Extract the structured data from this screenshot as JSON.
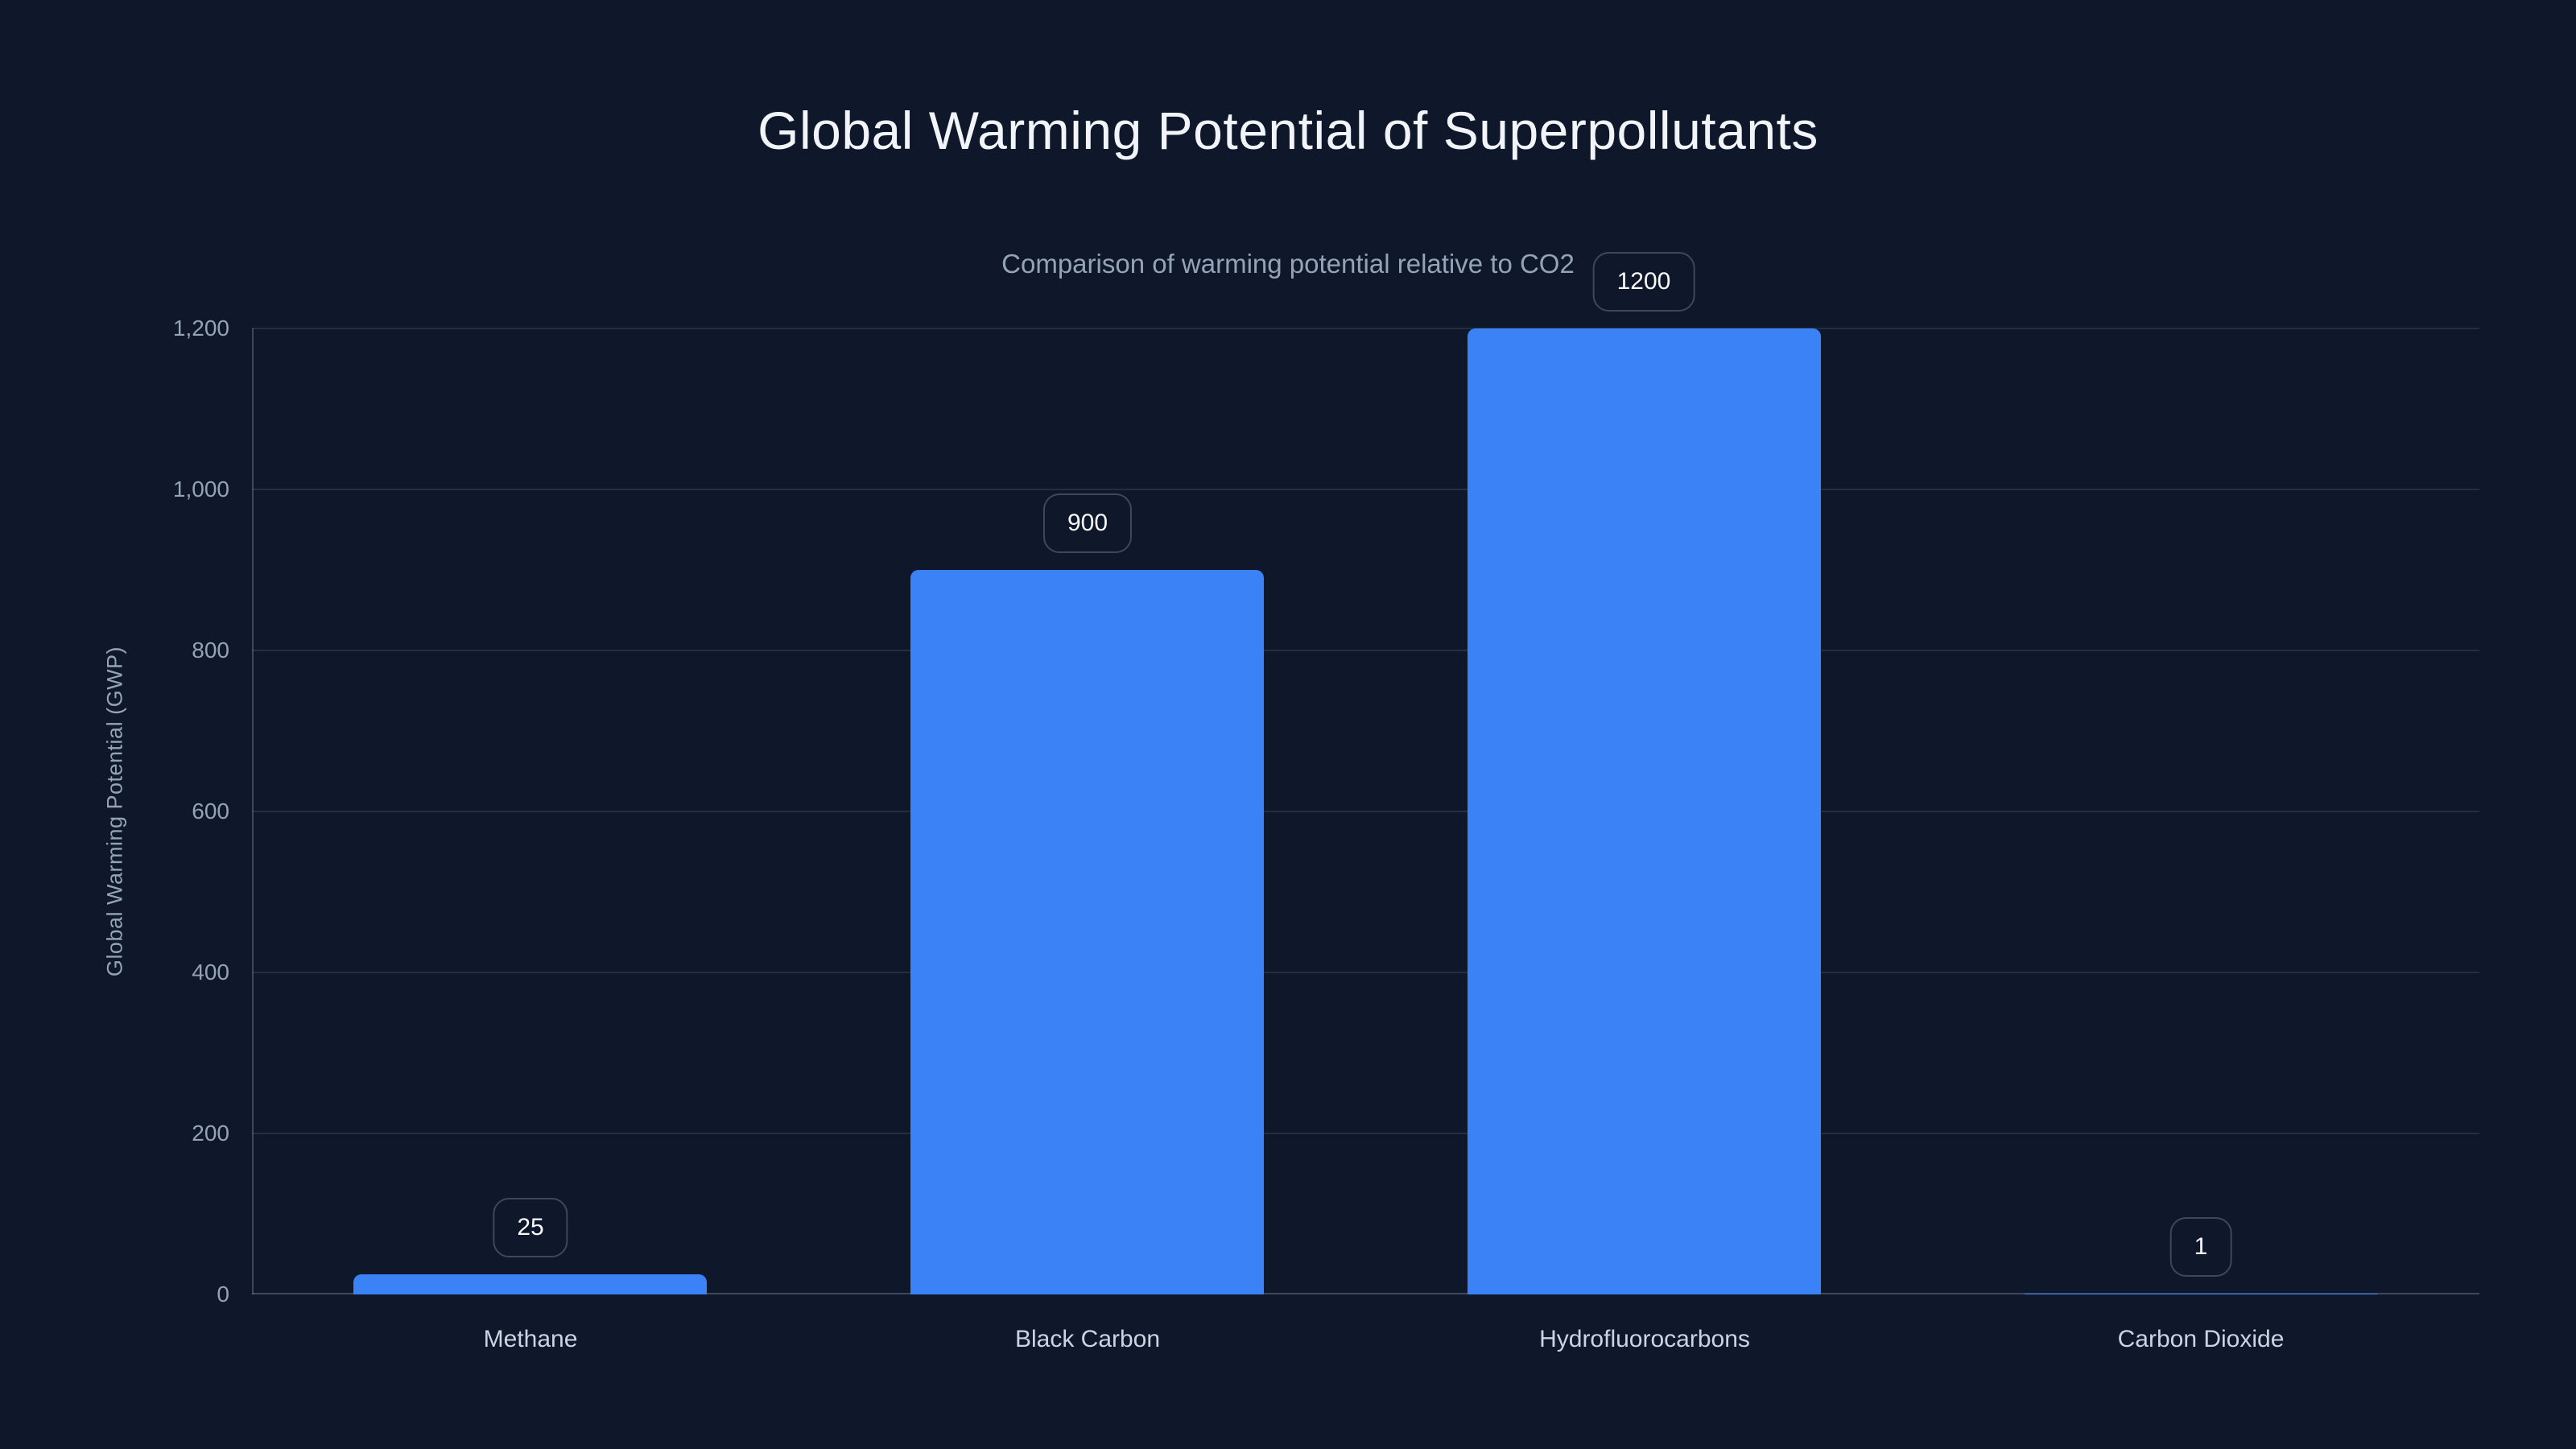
{
  "title": "Global Warming Potential of Superpollutants",
  "subtitle": "Comparison of warming potential relative to CO2",
  "chart_data": {
    "type": "bar",
    "title": "Global Warming Potential of Superpollutants",
    "subtitle": "Comparison of warming potential relative to CO2",
    "categories": [
      "Methane",
      "Black Carbon",
      "Hydrofluorocarbons",
      "Carbon Dioxide"
    ],
    "values": [
      25,
      900,
      1200,
      1
    ],
    "value_labels": [
      "25",
      "900",
      "1200",
      "1"
    ],
    "xlabel": "",
    "ylabel": "Global Warming Potential (GWP)",
    "ylim": [
      0,
      1200
    ],
    "yticks": [
      0,
      200,
      400,
      600,
      800,
      1000,
      1200
    ],
    "ytick_labels": [
      "0",
      "200",
      "400",
      "600",
      "800",
      "1,000",
      "1,200"
    ],
    "grid": true,
    "legend": false,
    "colors": {
      "background": "#0f172a",
      "bar": "#3b82f6",
      "title_text": "#f1f5f9",
      "subtitle_text": "#94a3b8",
      "tick_text": "#94a3b8",
      "category_text": "#cbd5e1",
      "badge_text": "#f8fafc",
      "badge_border": "rgba(148,163,184,0.35)",
      "gridline": "rgba(148,163,184,0.16)",
      "axis_line": "rgba(148,163,184,0.35)"
    }
  }
}
